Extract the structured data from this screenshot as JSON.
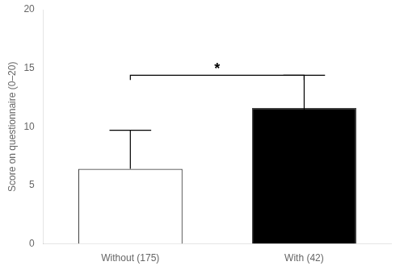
{
  "chart_data": {
    "type": "bar",
    "categories": [
      "Without (175)",
      "With (42)"
    ],
    "values": [
      6.4,
      11.6
    ],
    "colors": [
      "#ffffff",
      "#000000"
    ],
    "error_upper": [
      3.3,
      2.8
    ],
    "error_lower": [
      0,
      2.8
    ],
    "ylabel": "Score on questionnaire (0–20)",
    "ylim": [
      0,
      20
    ],
    "yticks": [
      0,
      5,
      10,
      15,
      20
    ],
    "grid": false,
    "annotations": [
      {
        "text": "*",
        "y": 14.4,
        "between": [
          "Without (175)",
          "With (42)"
        ]
      }
    ]
  }
}
